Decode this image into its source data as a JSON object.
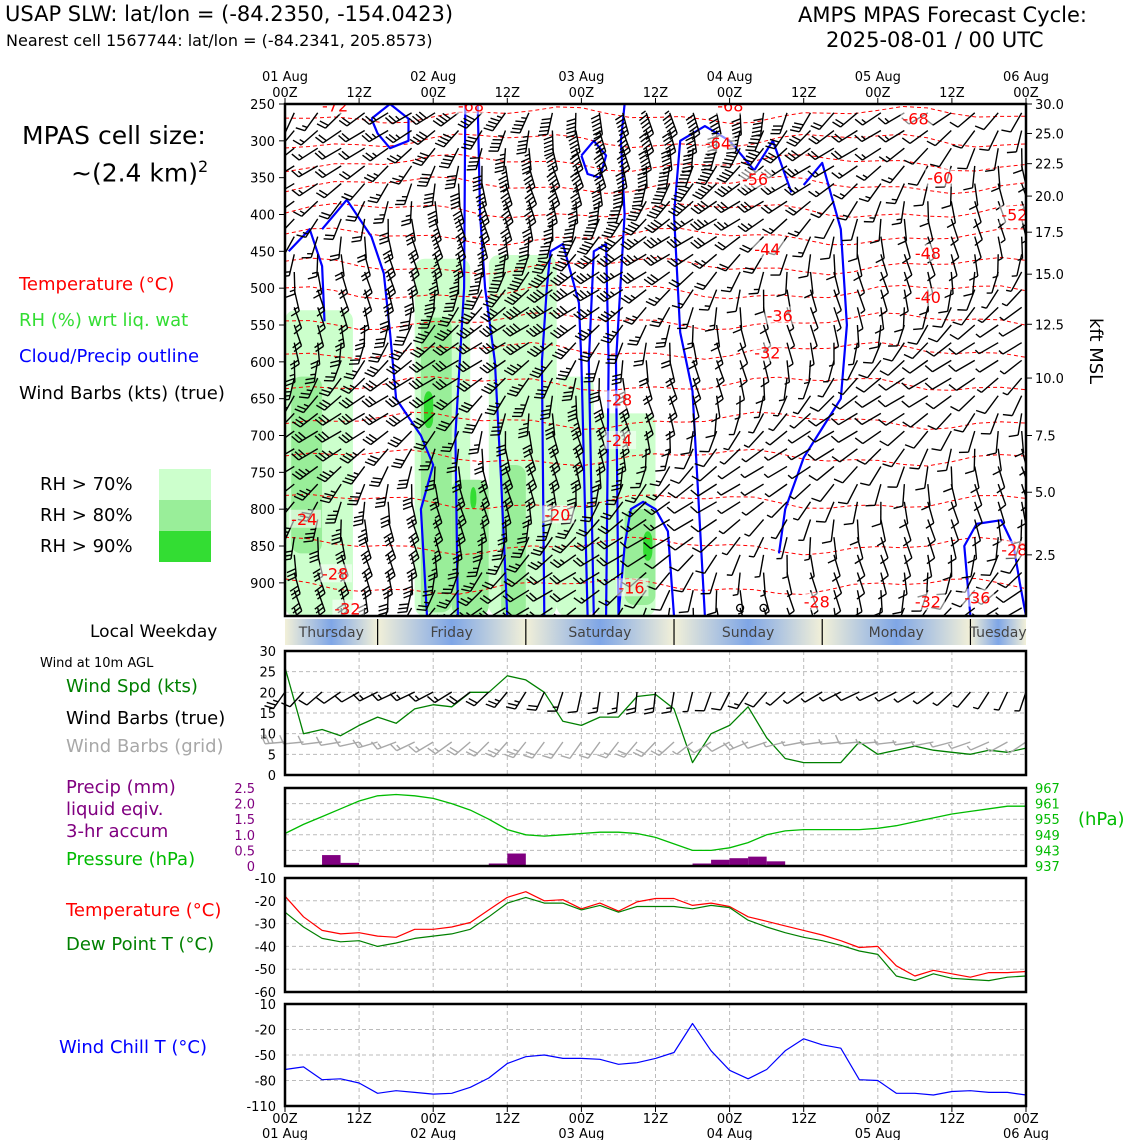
{
  "header": {
    "site_line": "USAP SLW: lat/lon = (-84.2350, -154.0423)",
    "cell_line": "Nearest cell 1567744: lat/lon = (-84.2341, 205.8573)",
    "model_title": "AMPS MPAS Forecast Cycle:",
    "cycle": "2025-08-01 / 00 UTC"
  },
  "side": {
    "cell_size_label": "MPAS cell size:",
    "cell_size_value": "~(2.4 km)",
    "cell_size_exp": "2",
    "legend_temperature": "Temperature (°C)",
    "legend_rh": "RH (%) wrt liq. wat",
    "legend_cloud": "Cloud/Precip outline",
    "legend_wind": "Wind Barbs (kts) (true)",
    "rh_bins": [
      "RH > 70%",
      "RH > 80%",
      "RH > 90%"
    ]
  },
  "colors": {
    "temperature": "#ff0000",
    "rh_label": "#33dd33",
    "rh70": "#ccffcc",
    "rh80": "#99ee99",
    "rh90": "#33dd33",
    "cloud": "#0000ff",
    "wind_speed": "#008000",
    "wind_grid": "#a8a8a8",
    "precip": "#800080",
    "pressure": "#00bb00",
    "dewpoint": "#008000",
    "windchill": "#0000ff",
    "weekday_band": "#7fa6e6"
  },
  "time_axis": {
    "top_dates": [
      "01 Aug",
      "02 Aug",
      "03 Aug",
      "04 Aug",
      "05 Aug",
      "06 Aug"
    ],
    "ticks": [
      "00Z",
      "12Z",
      "00Z",
      "12Z",
      "00Z",
      "12Z",
      "00Z",
      "12Z",
      "00Z",
      "12Z",
      "00Z"
    ]
  },
  "weekday": {
    "label": "Local Weekday",
    "days": [
      "Thursday",
      "Friday",
      "Saturday",
      "Sunday",
      "Monday",
      "Tuesday"
    ]
  },
  "panel_labels": {
    "wind_title": "Wind at 10m AGL",
    "wind_spd": "Wind Spd (kts)",
    "wind_barbs_true": "Wind Barbs (true)",
    "wind_barbs_grid": "Wind Barbs (grid)",
    "precip_1": "Precip (mm)",
    "precip_2": "liquid eqiv.",
    "precip_3": "3-hr accum",
    "pressure": "Pressure (hPa)",
    "pressure_unit": "(hPa)",
    "temperature": "Temperature (°C)",
    "dewpoint": "Dew Point T (°C)",
    "windchill": "Wind Chill T (°C)",
    "kft_label": "kft MSL"
  },
  "chart_data": [
    {
      "type": "heatmap",
      "name": "time-height cross section",
      "x_unit": "forecast hour",
      "xlim": [
        0,
        120
      ],
      "y_unit": "hPa",
      "ylim": [
        945,
        250
      ],
      "pressure_ticks": [
        250,
        300,
        350,
        400,
        450,
        500,
        550,
        600,
        650,
        700,
        750,
        800,
        850,
        900
      ],
      "kft_ticks": [
        {
          "p": 250,
          "label": "30.0"
        },
        {
          "p": 290,
          "label": "25.0"
        },
        {
          "p": 331,
          "label": "22.5"
        },
        {
          "p": 375,
          "label": "20.0"
        },
        {
          "p": 424,
          "label": "17.5"
        },
        {
          "p": 481,
          "label": "15.0"
        },
        {
          "p": 549,
          "label": "12.5"
        },
        {
          "p": 622,
          "label": "10.0"
        },
        {
          "p": 700,
          "label": "7.5"
        },
        {
          "p": 777,
          "label": "5.0"
        },
        {
          "p": 862,
          "label": "2.5"
        }
      ],
      "temperature_labels": [
        {
          "t": 3,
          "p": 252,
          "text": "-72"
        },
        {
          "t": 14,
          "p": 252,
          "text": "-68"
        },
        {
          "t": 35,
          "p": 252,
          "text": "-68"
        },
        {
          "t": 34,
          "p": 303,
          "text": "-64"
        },
        {
          "t": 37,
          "p": 352,
          "text": "-56"
        },
        {
          "t": 50,
          "p": 270,
          "text": "-68"
        },
        {
          "t": 52,
          "p": 350,
          "text": "-60"
        },
        {
          "t": 58,
          "p": 400,
          "text": "-52"
        },
        {
          "t": 38,
          "p": 447,
          "text": "-44"
        },
        {
          "t": 51,
          "p": 452,
          "text": "-48"
        },
        {
          "t": 39,
          "p": 537,
          "text": "-36"
        },
        {
          "t": 51,
          "p": 512,
          "text": "-40"
        },
        {
          "t": 38,
          "p": 587,
          "text": "-32"
        },
        {
          "t": 26,
          "p": 651,
          "text": "-28"
        },
        {
          "t": 26,
          "p": 706,
          "text": "-24"
        },
        {
          "t": 21,
          "p": 807,
          "text": "-20"
        },
        {
          "t": 27,
          "p": 906,
          "text": "-16"
        },
        {
          "t": 3,
          "p": 887,
          "text": "-28"
        },
        {
          "t": 4,
          "p": 935,
          "text": "-32"
        },
        {
          "t": 0.5,
          "p": 813,
          "text": "-24"
        },
        {
          "t": 42,
          "p": 925,
          "text": "-28"
        },
        {
          "t": 51,
          "p": 925,
          "text": "-32"
        },
        {
          "t": 55,
          "p": 920,
          "text": "-36"
        },
        {
          "t": 58,
          "p": 855,
          "text": "-28"
        }
      ],
      "rh_gt70_regions": [
        {
          "t": [
            0,
            11
          ],
          "p": [
            530,
            945
          ]
        },
        {
          "t": [
            21,
            30
          ],
          "p": [
            460,
            945
          ]
        },
        {
          "t": [
            33,
            44
          ],
          "p": [
            455,
            945
          ]
        },
        {
          "t": [
            44,
            50
          ],
          "p": [
            620,
            945
          ]
        },
        {
          "t": [
            50,
            60
          ],
          "p": [
            670,
            945
          ]
        }
      ],
      "rh_gt80_regions": [
        {
          "t": [
            1,
            6
          ],
          "p": [
            620,
            860
          ]
        },
        {
          "t": [
            22,
            27
          ],
          "p": [
            540,
            940
          ]
        },
        {
          "t": [
            27,
            33
          ],
          "p": [
            760,
            945
          ]
        },
        {
          "t": [
            35,
            39
          ],
          "p": [
            740,
            945
          ]
        },
        {
          "t": [
            55,
            60
          ],
          "p": [
            800,
            930
          ]
        }
      ],
      "rh_gt90_regions": [
        {
          "t": [
            22.5,
            24
          ],
          "p": [
            640,
            690
          ]
        },
        {
          "t": [
            30,
            31
          ],
          "p": [
            770,
            800
          ]
        },
        {
          "t": [
            58,
            59.5
          ],
          "p": [
            830,
            870
          ]
        }
      ],
      "wind_barb_samples_kts": [
        {
          "p": 300,
          "speeds": [
            15,
            20,
            25,
            40,
            45,
            50,
            55,
            60,
            55,
            45,
            30,
            20,
            15,
            10,
            10
          ]
        },
        {
          "p": 500,
          "speeds": [
            15,
            20,
            30,
            35,
            40,
            40,
            35,
            25,
            15,
            10,
            5,
            5,
            10,
            10,
            5
          ]
        },
        {
          "p": 750,
          "speeds": [
            35,
            35,
            30,
            25,
            30,
            30,
            25,
            15,
            10,
            5,
            5,
            10,
            10,
            10,
            10
          ]
        },
        {
          "p": 900,
          "speeds": [
            30,
            30,
            30,
            25,
            20,
            20,
            15,
            10,
            10,
            5,
            5,
            10,
            10,
            10,
            10
          ]
        }
      ]
    },
    {
      "type": "line",
      "name": "wind at 10m AGL",
      "x": [
        0,
        1.5,
        3,
        4.5,
        6,
        7.5,
        9,
        10.5,
        12,
        13.5,
        15,
        16.5,
        18,
        19.5,
        21,
        22.5,
        24,
        25.5,
        27,
        28.5,
        30,
        31.5,
        33,
        34.5,
        36,
        37.5,
        39,
        40.5,
        42,
        43.5,
        45,
        46.5,
        48,
        49.5,
        51,
        52.5,
        54,
        55.5,
        57,
        58.5,
        60
      ],
      "series": [
        {
          "name": "Wind Spd (kts)",
          "values": [
            26,
            10,
            11,
            9.5,
            12,
            14,
            12.5,
            16,
            17,
            16.5,
            20,
            20,
            24,
            23,
            20,
            13,
            12,
            14,
            14,
            19,
            19.5,
            16,
            3,
            10,
            12,
            16.5,
            9,
            4,
            3,
            3,
            3,
            8,
            5,
            6,
            7,
            6,
            5.5,
            5,
            6,
            5.5,
            6.5
          ]
        }
      ],
      "ylim": [
        0,
        30
      ],
      "yticks": [
        0,
        5,
        10,
        15,
        20,
        25,
        30
      ]
    },
    {
      "type": "bar",
      "name": "precipitation and pressure",
      "x": [
        0,
        1.5,
        3,
        4.5,
        6,
        7.5,
        9,
        10.5,
        12,
        13.5,
        15,
        16.5,
        18,
        19.5,
        21,
        22.5,
        24,
        25.5,
        27,
        28.5,
        30,
        31.5,
        33,
        34.5,
        36,
        37.5,
        39,
        40.5,
        42,
        43.5,
        45,
        46.5,
        48,
        49.5,
        51,
        52.5,
        54,
        55.5,
        57,
        58.5,
        60
      ],
      "series": [
        {
          "name": "Precip (mm)",
          "bars": [
            {
              "t": 3.75,
              "value": 0.35
            },
            {
              "t": 5.25,
              "value": 0.1
            },
            {
              "t": 17.25,
              "value": 0.08
            },
            {
              "t": 18.75,
              "value": 0.4
            },
            {
              "t": 33.75,
              "value": 0.08
            },
            {
              "t": 35.25,
              "value": 0.2
            },
            {
              "t": 36.75,
              "value": 0.25
            },
            {
              "t": 38.25,
              "value": 0.3
            },
            {
              "t": 39.75,
              "value": 0.15
            }
          ]
        },
        {
          "name": "Pressure (hPa)",
          "values": [
            949.5,
            953,
            956,
            959,
            962,
            964,
            964.5,
            964,
            963,
            961,
            958.5,
            955,
            951,
            949,
            948.5,
            949,
            949.5,
            950,
            950,
            949.5,
            948,
            945.5,
            943,
            943,
            944,
            946,
            949,
            950.5,
            951,
            951,
            951,
            951,
            951.5,
            952.5,
            954,
            955.5,
            957,
            958,
            959,
            960,
            960
          ]
        }
      ],
      "ylim_precip": [
        0,
        2.5
      ],
      "yticks_precip": [
        0,
        0.5,
        1.0,
        1.5,
        2.0,
        2.5
      ],
      "ylim_pressure": [
        937,
        967
      ],
      "yticks_pressure": [
        937,
        943,
        949,
        955,
        961,
        967
      ]
    },
    {
      "type": "line",
      "name": "temperature and dew point",
      "x": [
        0,
        1.5,
        3,
        4.5,
        6,
        7.5,
        9,
        10.5,
        12,
        13.5,
        15,
        16.5,
        18,
        19.5,
        21,
        22.5,
        24,
        25.5,
        27,
        28.5,
        30,
        31.5,
        33,
        34.5,
        36,
        37.5,
        39,
        40.5,
        42,
        43.5,
        45,
        46.5,
        48,
        49.5,
        51,
        52.5,
        54,
        55.5,
        57,
        58.5,
        60
      ],
      "series": [
        {
          "name": "Temperature (°C)",
          "values": [
            -18,
            -27,
            -33,
            -34.5,
            -34,
            -35.5,
            -36,
            -32.5,
            -32.5,
            -31.5,
            -29.5,
            -24,
            -18.5,
            -16,
            -20,
            -19.5,
            -23.5,
            -21,
            -24.5,
            -20.5,
            -19,
            -19,
            -22,
            -21,
            -22.5,
            -27,
            -29,
            -31,
            -33,
            -35,
            -37.5,
            -40.5,
            -40,
            -48.5,
            -53,
            -50.5,
            -52,
            -53.5,
            -51.5,
            -51.5,
            -51
          ]
        },
        {
          "name": "Dew Point T (°C)",
          "values": [
            -25,
            -31.5,
            -36.5,
            -38,
            -37.5,
            -40,
            -38.5,
            -36.5,
            -35.5,
            -34.5,
            -32.5,
            -27,
            -21,
            -18.5,
            -21,
            -21,
            -24,
            -22,
            -25,
            -22.5,
            -22.5,
            -22.5,
            -23.5,
            -22,
            -23,
            -28.5,
            -31.5,
            -34,
            -36,
            -37.5,
            -39.5,
            -42,
            -43.5,
            -53,
            -55,
            -52,
            -54,
            -54.5,
            -55,
            -53.5,
            -53
          ]
        }
      ],
      "ylim": [
        -60,
        -10
      ],
      "yticks": [
        -60,
        -50,
        -40,
        -30,
        -20,
        -10
      ]
    },
    {
      "type": "line",
      "name": "wind chill",
      "x": [
        0,
        1.5,
        3,
        4.5,
        6,
        7.5,
        9,
        10.5,
        12,
        13.5,
        15,
        16.5,
        18,
        19.5,
        21,
        22.5,
        24,
        25.5,
        27,
        28.5,
        30,
        31.5,
        33,
        34.5,
        36,
        37.5,
        39,
        40.5,
        42,
        43.5,
        45,
        46.5,
        48,
        49.5,
        51,
        52.5,
        54,
        55.5,
        57,
        58.5,
        60
      ],
      "series": [
        {
          "name": "Wind Chill T (°C)",
          "values": [
            -67,
            -64,
            -79,
            -78,
            -83,
            -95,
            -92,
            -94,
            -96,
            -95,
            -88,
            -77,
            -60,
            -52,
            -50,
            -54,
            -54,
            -55,
            -61,
            -59,
            -54,
            -47,
            -13,
            -45,
            -68,
            -78,
            -67,
            -45,
            -31,
            -38,
            -42,
            -79,
            -80,
            -95,
            -95,
            -97,
            -93,
            -92,
            -94,
            -94,
            -97
          ]
        }
      ],
      "ylim": [
        -110,
        10
      ],
      "yticks": [
        -110,
        -80,
        -50,
        -20,
        10
      ]
    }
  ]
}
